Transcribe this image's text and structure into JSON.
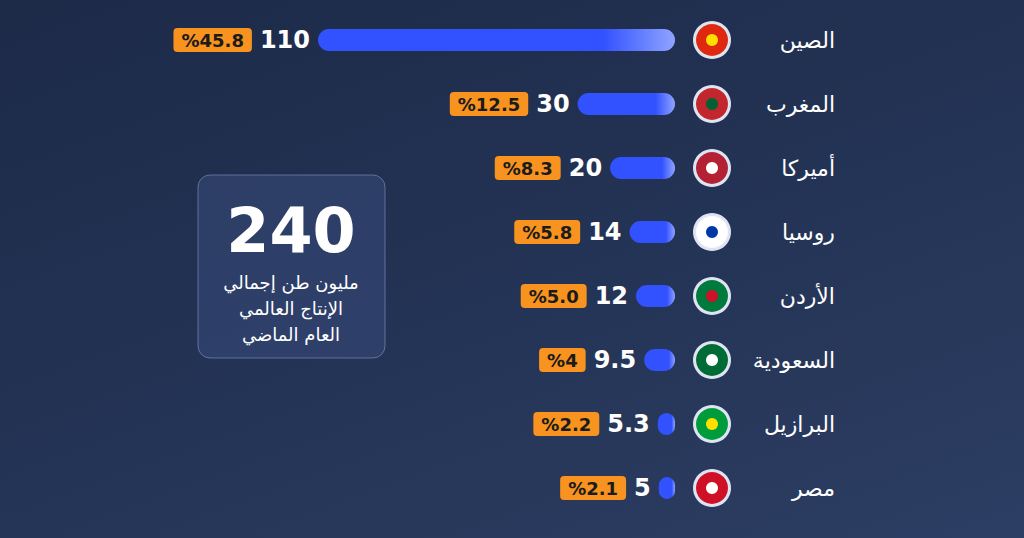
{
  "chart_data": {
    "type": "bar",
    "orientation": "horizontal",
    "categories": [
      "الصين",
      "المغرب",
      "أميركا",
      "روسيا",
      "الأردن",
      "السعودية",
      "البرازيل",
      "مصر"
    ],
    "values": [
      110,
      30,
      20,
      14,
      12,
      9.5,
      5.3,
      5
    ],
    "shares": [
      {
        "value": 45.8,
        "label": "%45.8"
      },
      {
        "value": 12.5,
        "label": "%12.5"
      },
      {
        "value": 8.3,
        "label": "%8.3"
      },
      {
        "value": 5.8,
        "label": "%5.8"
      },
      {
        "value": 5.0,
        "label": "%5.0"
      },
      {
        "value": 4,
        "label": "%4"
      },
      {
        "value": 2.2,
        "label": "%2.2"
      },
      {
        "value": 2.1,
        "label": "%2.1"
      }
    ],
    "data_labels": true,
    "color": "#3352ff",
    "xlim": [
      0,
      110
    ],
    "tick_labels": false,
    "grid": false,
    "annotation": {
      "value": 240,
      "lines": [
        "مليون طن إجمالي",
        "الإنتاج العالمي",
        "العام الماضي"
      ]
    }
  }
}
